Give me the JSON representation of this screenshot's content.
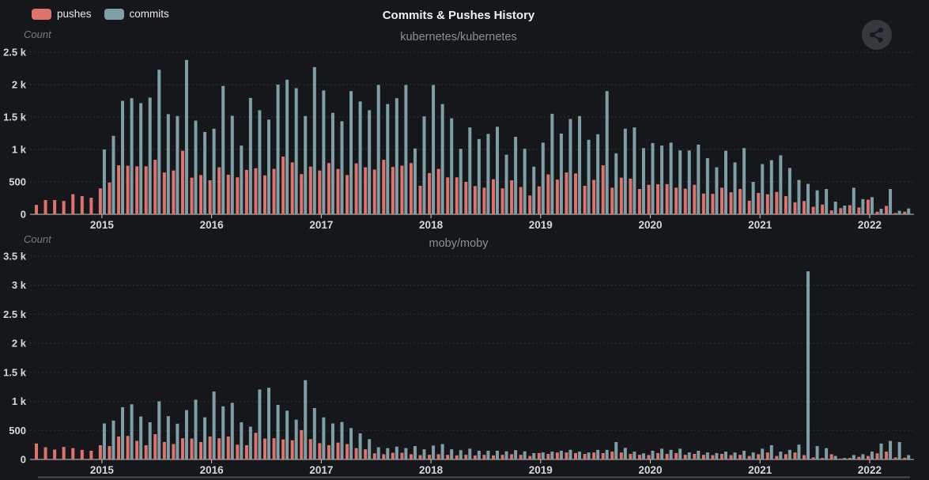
{
  "header": {
    "title": "Commits & Pushes History",
    "legend": [
      {
        "label": "pushes",
        "color": "#e0726e"
      },
      {
        "label": "commits",
        "color": "#7d9fa5"
      }
    ]
  },
  "colors": {
    "background": "#16171a",
    "pushes": "#e0726e",
    "commits": "#7d9fa5",
    "axis_line": "#c6c8ca",
    "gridline": "#2d3036",
    "tick_label": "#d6d8da",
    "subtitle": "#8c8f93",
    "count_label": "#76797d",
    "share_button_bg": "#36393e",
    "share_glyph": "#17191d"
  },
  "chart_data": [
    {
      "type": "bar",
      "title": "kubernetes/kubernetes",
      "ylabel": "Count",
      "ylim": [
        0,
        2500
      ],
      "grid": true,
      "legend_position": "top-left",
      "ytick_values": [
        0,
        500,
        1000,
        1500,
        2000,
        2500
      ],
      "ytick_labels": [
        "0",
        "500",
        "1 k",
        "1.5 k",
        "2 k",
        "2.5 k"
      ],
      "xtick_years": [
        "2015",
        "2016",
        "2017",
        "2018",
        "2019",
        "2020",
        "2021",
        "2022"
      ],
      "categories": [
        "2014-06",
        "2014-07",
        "2014-08",
        "2014-09",
        "2014-10",
        "2014-11",
        "2014-12",
        "2015-01",
        "2015-02",
        "2015-03",
        "2015-04",
        "2015-05",
        "2015-06",
        "2015-07",
        "2015-08",
        "2015-09",
        "2015-10",
        "2015-11",
        "2015-12",
        "2016-01",
        "2016-02",
        "2016-03",
        "2016-04",
        "2016-05",
        "2016-06",
        "2016-07",
        "2016-08",
        "2016-09",
        "2016-10",
        "2016-11",
        "2016-12",
        "2017-01",
        "2017-02",
        "2017-03",
        "2017-04",
        "2017-05",
        "2017-06",
        "2017-07",
        "2017-08",
        "2017-09",
        "2017-10",
        "2017-11",
        "2017-12",
        "2018-01",
        "2018-02",
        "2018-03",
        "2018-04",
        "2018-05",
        "2018-06",
        "2018-07",
        "2018-08",
        "2018-09",
        "2018-10",
        "2018-11",
        "2018-12",
        "2019-01",
        "2019-02",
        "2019-03",
        "2019-04",
        "2019-05",
        "2019-06",
        "2019-07",
        "2019-08",
        "2019-09",
        "2019-10",
        "2019-11",
        "2019-12",
        "2020-01",
        "2020-02",
        "2020-03",
        "2020-04",
        "2020-05",
        "2020-06",
        "2020-07",
        "2020-08",
        "2020-09",
        "2020-10",
        "2020-11",
        "2020-12",
        "2021-01",
        "2021-02",
        "2021-03",
        "2021-04",
        "2021-05",
        "2021-06",
        "2021-07",
        "2021-08",
        "2021-09",
        "2021-10",
        "2021-11",
        "2021-12",
        "2022-01",
        "2022-02",
        "2022-03",
        "2022-04",
        "2022-05"
      ],
      "series": [
        {
          "name": "pushes",
          "values": [
            145,
            220,
            220,
            205,
            310,
            280,
            255,
            400,
            490,
            755,
            750,
            740,
            740,
            840,
            645,
            675,
            980,
            565,
            605,
            525,
            725,
            610,
            570,
            685,
            710,
            600,
            700,
            890,
            800,
            620,
            735,
            675,
            790,
            700,
            605,
            785,
            725,
            690,
            840,
            730,
            750,
            790,
            440,
            635,
            700,
            570,
            570,
            500,
            435,
            410,
            540,
            400,
            525,
            420,
            290,
            430,
            615,
            535,
            645,
            630,
            440,
            530,
            755,
            410,
            565,
            550,
            390,
            455,
            465,
            465,
            410,
            395,
            455,
            320,
            315,
            410,
            340,
            390,
            210,
            330,
            310,
            345,
            280,
            185,
            205,
            115,
            150,
            60,
            95,
            140,
            105,
            225,
            40,
            130,
            20,
            40
          ]
        },
        {
          "name": "commits",
          "values": [
            0,
            0,
            0,
            0,
            0,
            0,
            0,
            1000,
            1210,
            1750,
            1790,
            1715,
            1800,
            2230,
            1545,
            1515,
            2380,
            1445,
            1270,
            1320,
            1980,
            1520,
            1060,
            1795,
            1605,
            1460,
            2000,
            2075,
            1945,
            1515,
            2270,
            1910,
            1565,
            1435,
            1900,
            1740,
            1605,
            1995,
            1700,
            1790,
            1995,
            1015,
            1510,
            1995,
            1700,
            1480,
            1010,
            1340,
            1160,
            1240,
            1350,
            920,
            1195,
            1010,
            735,
            1105,
            1550,
            1245,
            1470,
            1515,
            1150,
            1235,
            1900,
            940,
            1320,
            1340,
            1020,
            1100,
            1060,
            1105,
            985,
            985,
            1075,
            865,
            725,
            980,
            800,
            1020,
            500,
            775,
            835,
            910,
            715,
            530,
            470,
            370,
            390,
            195,
            135,
            410,
            235,
            265,
            85,
            390,
            55,
            90
          ]
        }
      ]
    },
    {
      "type": "bar",
      "title": "moby/moby",
      "ylabel": "Count",
      "ylim": [
        0,
        3500
      ],
      "grid": true,
      "ytick_values": [
        0,
        500,
        1000,
        1500,
        2000,
        2500,
        3000,
        3500
      ],
      "ytick_labels": [
        "0",
        "500",
        "1 k",
        "1.5 k",
        "2 k",
        "2.5 k",
        "3 k",
        "3.5 k"
      ],
      "xtick_years": [
        "2015",
        "2016",
        "2017",
        "2018",
        "2019",
        "2020",
        "2021",
        "2022"
      ],
      "categories": [
        "2014-06",
        "2014-07",
        "2014-08",
        "2014-09",
        "2014-10",
        "2014-11",
        "2014-12",
        "2015-01",
        "2015-02",
        "2015-03",
        "2015-04",
        "2015-05",
        "2015-06",
        "2015-07",
        "2015-08",
        "2015-09",
        "2015-10",
        "2015-11",
        "2015-12",
        "2016-01",
        "2016-02",
        "2016-03",
        "2016-04",
        "2016-05",
        "2016-06",
        "2016-07",
        "2016-08",
        "2016-09",
        "2016-10",
        "2016-11",
        "2016-12",
        "2017-01",
        "2017-02",
        "2017-03",
        "2017-04",
        "2017-05",
        "2017-06",
        "2017-07",
        "2017-08",
        "2017-09",
        "2017-10",
        "2017-11",
        "2017-12",
        "2018-01",
        "2018-02",
        "2018-03",
        "2018-04",
        "2018-05",
        "2018-06",
        "2018-07",
        "2018-08",
        "2018-09",
        "2018-10",
        "2018-11",
        "2018-12",
        "2019-01",
        "2019-02",
        "2019-03",
        "2019-04",
        "2019-05",
        "2019-06",
        "2019-07",
        "2019-08",
        "2019-09",
        "2019-10",
        "2019-11",
        "2019-12",
        "2020-01",
        "2020-02",
        "2020-03",
        "2020-04",
        "2020-05",
        "2020-06",
        "2020-07",
        "2020-08",
        "2020-09",
        "2020-10",
        "2020-11",
        "2020-12",
        "2021-01",
        "2021-02",
        "2021-03",
        "2021-04",
        "2021-05",
        "2021-06",
        "2021-07",
        "2021-08",
        "2021-09",
        "2021-10",
        "2021-11",
        "2021-12",
        "2022-01",
        "2022-02",
        "2022-03",
        "2022-04",
        "2022-05"
      ],
      "series": [
        {
          "name": "pushes",
          "values": [
            275,
            210,
            170,
            215,
            195,
            165,
            150,
            245,
            230,
            395,
            405,
            320,
            245,
            435,
            300,
            265,
            365,
            360,
            300,
            395,
            365,
            395,
            255,
            245,
            460,
            360,
            365,
            345,
            330,
            505,
            350,
            280,
            245,
            290,
            265,
            195,
            175,
            105,
            90,
            115,
            115,
            90,
            75,
            80,
            90,
            80,
            70,
            80,
            70,
            80,
            70,
            80,
            90,
            80,
            60,
            110,
            95,
            120,
            120,
            110,
            95,
            120,
            110,
            135,
            120,
            95,
            80,
            75,
            110,
            95,
            110,
            80,
            95,
            80,
            75,
            95,
            75,
            80,
            60,
            90,
            120,
            60,
            90,
            120,
            75,
            35,
            25,
            90,
            15,
            25,
            45,
            60,
            105,
            135,
            35,
            30
          ]
        },
        {
          "name": "commits",
          "values": [
            0,
            0,
            0,
            0,
            0,
            0,
            0,
            620,
            670,
            900,
            950,
            740,
            640,
            1000,
            745,
            615,
            850,
            1030,
            725,
            1170,
            915,
            975,
            640,
            565,
            1205,
            1235,
            940,
            840,
            685,
            1365,
            885,
            725,
            620,
            645,
            540,
            450,
            350,
            210,
            195,
            220,
            195,
            230,
            175,
            240,
            265,
            175,
            160,
            185,
            150,
            150,
            150,
            140,
            160,
            140,
            110,
            120,
            135,
            150,
            165,
            135,
            120,
            165,
            165,
            300,
            200,
            135,
            105,
            150,
            185,
            165,
            185,
            120,
            150,
            120,
            110,
            135,
            120,
            150,
            120,
            185,
            245,
            135,
            165,
            255,
            3240,
            230,
            195,
            60,
            25,
            75,
            90,
            135,
            275,
            320,
            300,
            75
          ]
        }
      ]
    }
  ]
}
